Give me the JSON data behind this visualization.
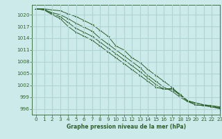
{
  "title": "Graphe pression niveau de la mer (hPa)",
  "bg_color": "#cdeaea",
  "grid_color": "#b0d4d4",
  "line_color": "#2d5f2d",
  "xlim": [
    -0.5,
    23
  ],
  "ylim": [
    994.5,
    1022.5
  ],
  "yticks": [
    996,
    999,
    1002,
    1005,
    1008,
    1011,
    1014,
    1017,
    1020
  ],
  "xticks": [
    0,
    1,
    2,
    3,
    4,
    5,
    6,
    7,
    8,
    9,
    10,
    11,
    12,
    13,
    14,
    15,
    16,
    17,
    18,
    19,
    20,
    21,
    22,
    23
  ],
  "series": [
    [
      1021.5,
      1021.5,
      1021.2,
      1021.0,
      1020.2,
      1019.5,
      1018.5,
      1017.5,
      1016.0,
      1014.5,
      1012.0,
      1011.0,
      1009.0,
      1007.8,
      1006.0,
      1004.5,
      1003.0,
      1001.5,
      999.5,
      998.0,
      997.5,
      997.0,
      996.8,
      996.2
    ],
    [
      1021.5,
      1021.3,
      1020.5,
      1020.0,
      1019.0,
      1017.8,
      1016.8,
      1015.8,
      1014.0,
      1012.5,
      1011.0,
      1009.5,
      1008.0,
      1006.5,
      1004.5,
      1003.0,
      1001.5,
      1000.5,
      999.0,
      997.8,
      997.0,
      996.8,
      996.5,
      996.0
    ],
    [
      1021.5,
      1021.2,
      1020.2,
      1019.5,
      1018.0,
      1016.5,
      1015.5,
      1014.5,
      1013.0,
      1011.5,
      1010.0,
      1008.5,
      1007.0,
      1005.5,
      1003.8,
      1002.2,
      1001.0,
      1001.0,
      999.5,
      998.0,
      997.0,
      996.8,
      996.5,
      996.2
    ],
    [
      1021.5,
      1021.2,
      1020.0,
      1019.0,
      1017.0,
      1015.5,
      1014.5,
      1013.5,
      1012.0,
      1010.5,
      1009.0,
      1007.5,
      1006.0,
      1004.5,
      1003.0,
      1001.5,
      1001.0,
      1001.2,
      999.8,
      998.0,
      997.5,
      997.0,
      996.8,
      996.5
    ]
  ]
}
